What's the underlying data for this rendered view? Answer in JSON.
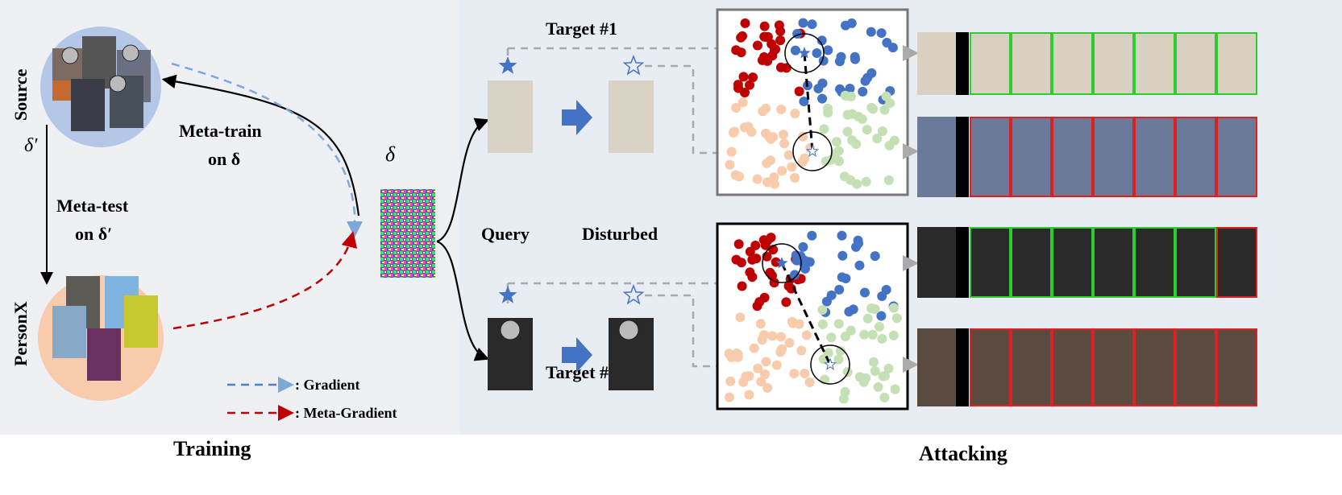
{
  "training": {
    "title": "Training",
    "source_label": "Source",
    "personx_label": "PersonX",
    "delta_prime": "δ′",
    "meta_test_line1": "Meta-test",
    "meta_test_line2": "on δ′",
    "meta_train_line1": "Meta-train",
    "meta_train_line2": "on δ",
    "delta": "δ",
    "legend": [
      {
        "label": ": Gradient",
        "color": "#4f7fc6"
      },
      {
        "label": ": Meta-Gradient",
        "color": "#c00000"
      }
    ]
  },
  "attacking": {
    "title": "Attacking",
    "target1": "Target #1",
    "target2": "Target #2",
    "query": "Query",
    "disturbed": "Disturbed"
  },
  "colors": {
    "source_circle": "#b4c7e7",
    "personx_circle": "#f8cbad",
    "cluster_red": "#c00000",
    "cluster_blue": "#4472c4",
    "cluster_peach": "#f8cbad",
    "cluster_green": "#c5e0b4",
    "match_border": "#2ecc2e",
    "mismatch_border": "#e02020"
  },
  "gallery_rows": [
    [
      "match",
      "match",
      "match",
      "match",
      "match",
      "match",
      "match"
    ],
    [
      "mismatch",
      "mismatch",
      "mismatch",
      "mismatch",
      "mismatch",
      "mismatch",
      "mismatch"
    ],
    [
      "match",
      "match",
      "match",
      "match",
      "match",
      "match",
      "mismatch"
    ],
    [
      "mismatch",
      "mismatch",
      "mismatch",
      "mismatch",
      "mismatch",
      "mismatch",
      "mismatch"
    ]
  ]
}
